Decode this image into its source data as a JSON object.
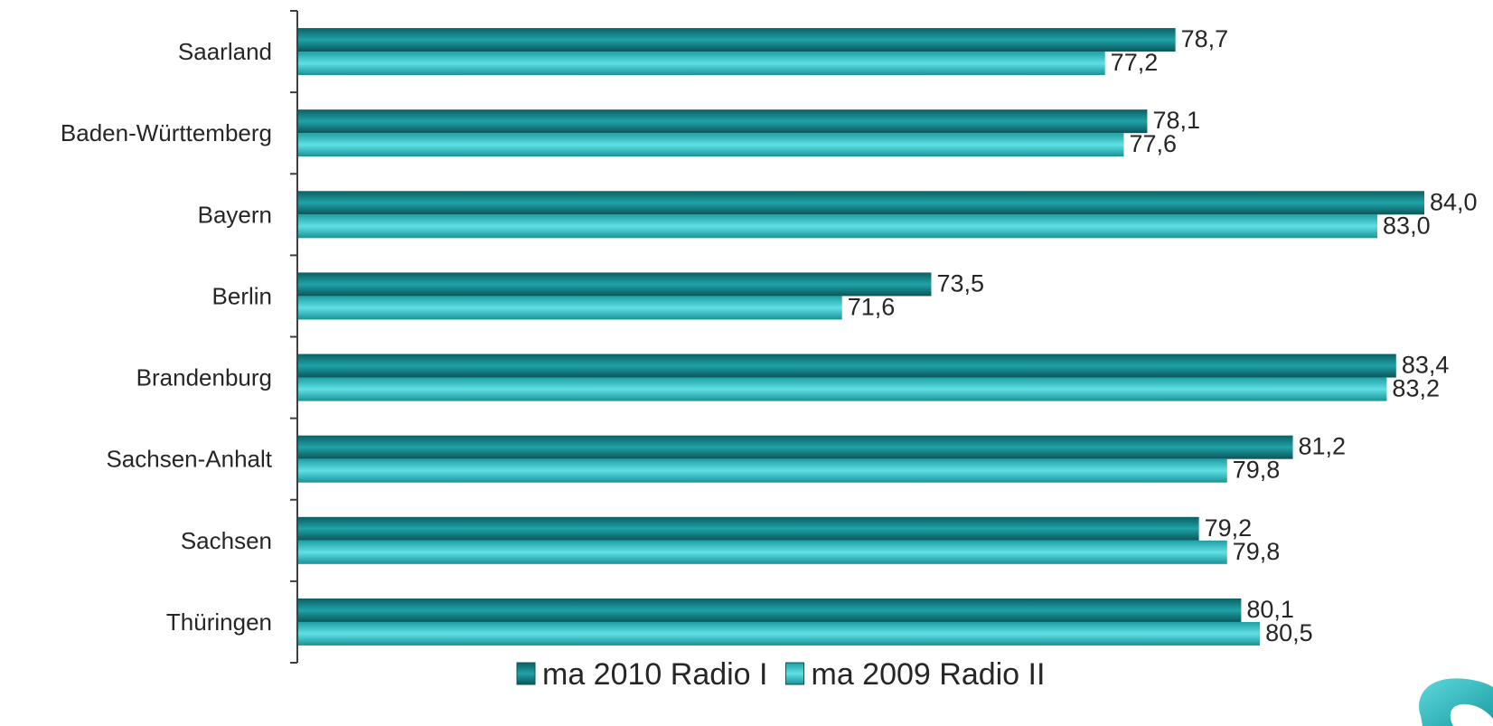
{
  "chart_data": {
    "type": "bar",
    "orientation": "horizontal",
    "categories": [
      "Saarland",
      "Baden-Württemberg",
      "Bayern",
      "Berlin",
      "Brandenburg",
      "Sachsen-Anhalt",
      "Sachsen",
      "Thüringen"
    ],
    "series": [
      {
        "name": "ma 2010 Radio I",
        "values": [
          78.7,
          78.1,
          84.0,
          73.5,
          83.4,
          81.2,
          79.2,
          80.1
        ],
        "labels": [
          "78,7",
          "78,1",
          "84,0",
          "73,5",
          "83,4",
          "81,2",
          "79,2",
          "80,1"
        ],
        "color": "#0f7c80"
      },
      {
        "name": "ma 2009 Radio II",
        "values": [
          77.2,
          77.6,
          83.0,
          71.6,
          83.2,
          79.8,
          79.8,
          80.5
        ],
        "labels": [
          "77,2",
          "77,6",
          "83,0",
          "71,6",
          "83,2",
          "79,8",
          "79,8",
          "80,5"
        ],
        "color": "#3cc5c9"
      }
    ],
    "title": "",
    "xlabel": "",
    "ylabel": "",
    "xlim": [
      60.0,
      86.0
    ],
    "grid": false,
    "legend": "bottom-center"
  },
  "logo": {
    "icon": "swirl-logo-icon",
    "color": "#2ab7bd"
  }
}
